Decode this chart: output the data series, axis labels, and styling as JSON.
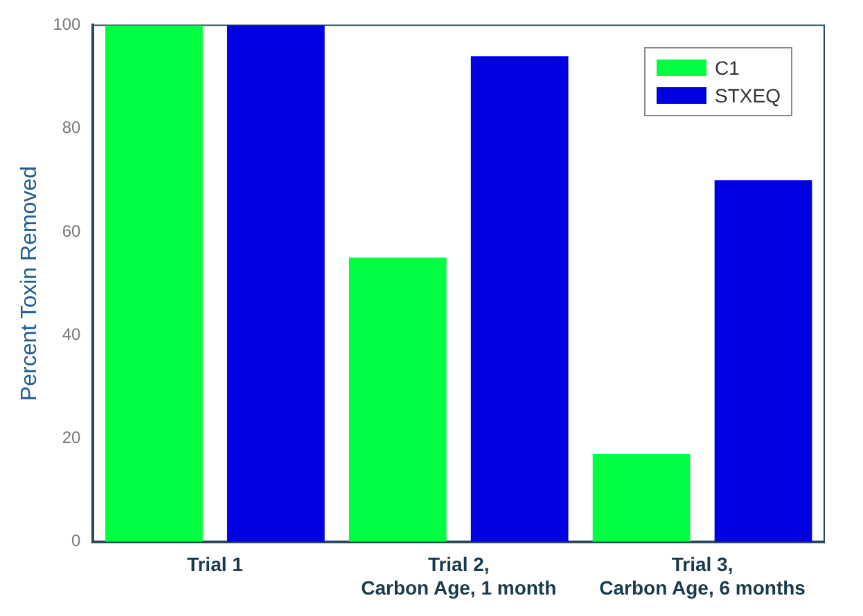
{
  "chart_data": {
    "type": "bar",
    "ylabel": "Percent Toxin Removed",
    "categories": [
      "Trial 1",
      "Trial 2,\nCarbon Age, 1 month",
      "Trial 3,\nCarbon Age, 6 months"
    ],
    "series": [
      {
        "name": "C1",
        "color": "#00ff40",
        "values": [
          100,
          55,
          17
        ]
      },
      {
        "name": "STXEQ",
        "color": "#0000e0",
        "values": [
          100,
          94,
          70
        ]
      }
    ],
    "ylim": [
      0,
      100
    ],
    "yticks": [
      0,
      20,
      40,
      60,
      80,
      100
    ],
    "grid": false,
    "legend": "top right"
  }
}
